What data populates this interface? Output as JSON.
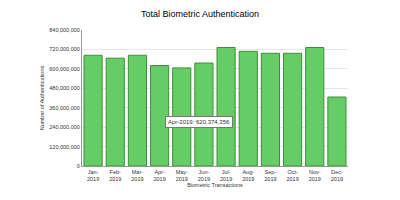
{
  "chart_data": {
    "type": "bar",
    "title": "Total Biometric Authentication",
    "x_label": "Biometric Transactions",
    "y_label": "Number of Authentications",
    "categories": [
      "Jan-2019",
      "Feb-2019",
      "Mar-2019",
      "Apr-2019",
      "May-2019",
      "Jun-2019",
      "Jul-2019",
      "Aug-2019",
      "Sep-2019",
      "Oct-2019",
      "Nov-2019",
      "Dec-2019"
    ],
    "values": [
      684000000,
      666000000,
      684000000,
      620374356,
      606000000,
      636000000,
      732000000,
      708000000,
      696000000,
      696000000,
      732000000,
      426000000
    ],
    "color": "#66cc66",
    "ylim": [
      0,
      840000000
    ],
    "yticks": [
      0,
      {
        "value": 120000000,
        "label": "120,000,000"
      },
      {
        "value": 240000000,
        "label": "240,000,000"
      },
      {
        "value": 360000000,
        "label": "360,000,000"
      },
      {
        "value": 480000000,
        "label": "480,000,000"
      },
      {
        "value": 600000000,
        "label": "600,000,000"
      },
      {
        "value": 720000000,
        "label": "720,000,000"
      },
      {
        "value": 840000000,
        "label": "840,000,000"
      }
    ],
    "grid": true,
    "annotations": [
      {
        "text": "Apr-2019: 620,374,356"
      }
    ]
  }
}
